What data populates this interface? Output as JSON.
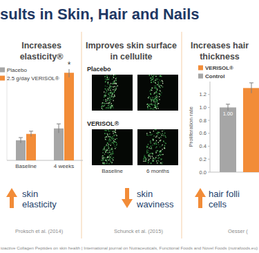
{
  "chart_data": [
    {
      "type": "bar",
      "title": "Increases elasticity®",
      "categories": [
        "Baseline",
        "4 weeks"
      ],
      "series": [
        {
          "name": "Placebo",
          "color": "#a6a6a6",
          "values": [
            22,
            35
          ],
          "errors": [
            3,
            5
          ]
        },
        {
          "name": "2.5 g/day VERISOL®",
          "color": "#f28c38",
          "values": [
            29,
            96
          ],
          "errors": [
            3,
            5
          ]
        }
      ],
      "ylim": [
        0,
        100
      ],
      "tick_labels": "x",
      "legend": "upper left",
      "annotations": [
        "*"
      ]
    },
    {
      "type": "bar",
      "title": "Increases hair thickness",
      "y_label": "Proliferation rate",
      "categories": [
        null
      ],
      "series": [
        {
          "name": "Control",
          "color": "#a6a6a6",
          "values": [
            1.0
          ],
          "errors": [
            0.05
          ],
          "value_labels": [
            "1.00"
          ]
        },
        {
          "name": "VERISOL®",
          "color": "#f28c38",
          "values": [
            1.3
          ],
          "errors": [
            0.08
          ]
        }
      ],
      "ylim": [
        0,
        1.4
      ],
      "yticks": [
        {
          "value": 0,
          "label": "0.0"
        },
        {
          "value": 0.2,
          "label": "0.2"
        },
        {
          "value": 0.4,
          "label": "0.4"
        },
        {
          "value": 0.6,
          "label": "0.6"
        },
        {
          "value": 0.8,
          "label": "0.8"
        },
        {
          "value": 1.0,
          "label": "1.0"
        },
        {
          "value": 1.2,
          "label": "1.2"
        }
      ],
      "tick_labels": "y",
      "data_labels": true,
      "legend": "upper left"
    }
  ],
  "slide": {
    "title": "sults in Skin, Hair and Nails",
    "panels": [
      {
        "caption_lines": [
          "skin",
          "elasticity"
        ],
        "citation": "Proksch et al. (2014)"
      },
      {
        "heading_lines": [
          "Improves skin surface",
          "in cellulite"
        ],
        "image_rows": [
          "Placebo",
          "VERISOL®"
        ],
        "image_columns": [
          "Baseline",
          "6 months"
        ],
        "caption_lines": [
          "skin",
          "waviness"
        ],
        "citation": "Schunck et al. (2015)"
      },
      {
        "caption_lines": [
          "hair folli",
          "cells"
        ],
        "citation": "Oesser ("
      }
    ],
    "footer": "ioactive Collagen Peptides on skin health | International journal on Nutraceuticals, Functional Foods and Novel Foods (nutrafoods.eu)"
  }
}
